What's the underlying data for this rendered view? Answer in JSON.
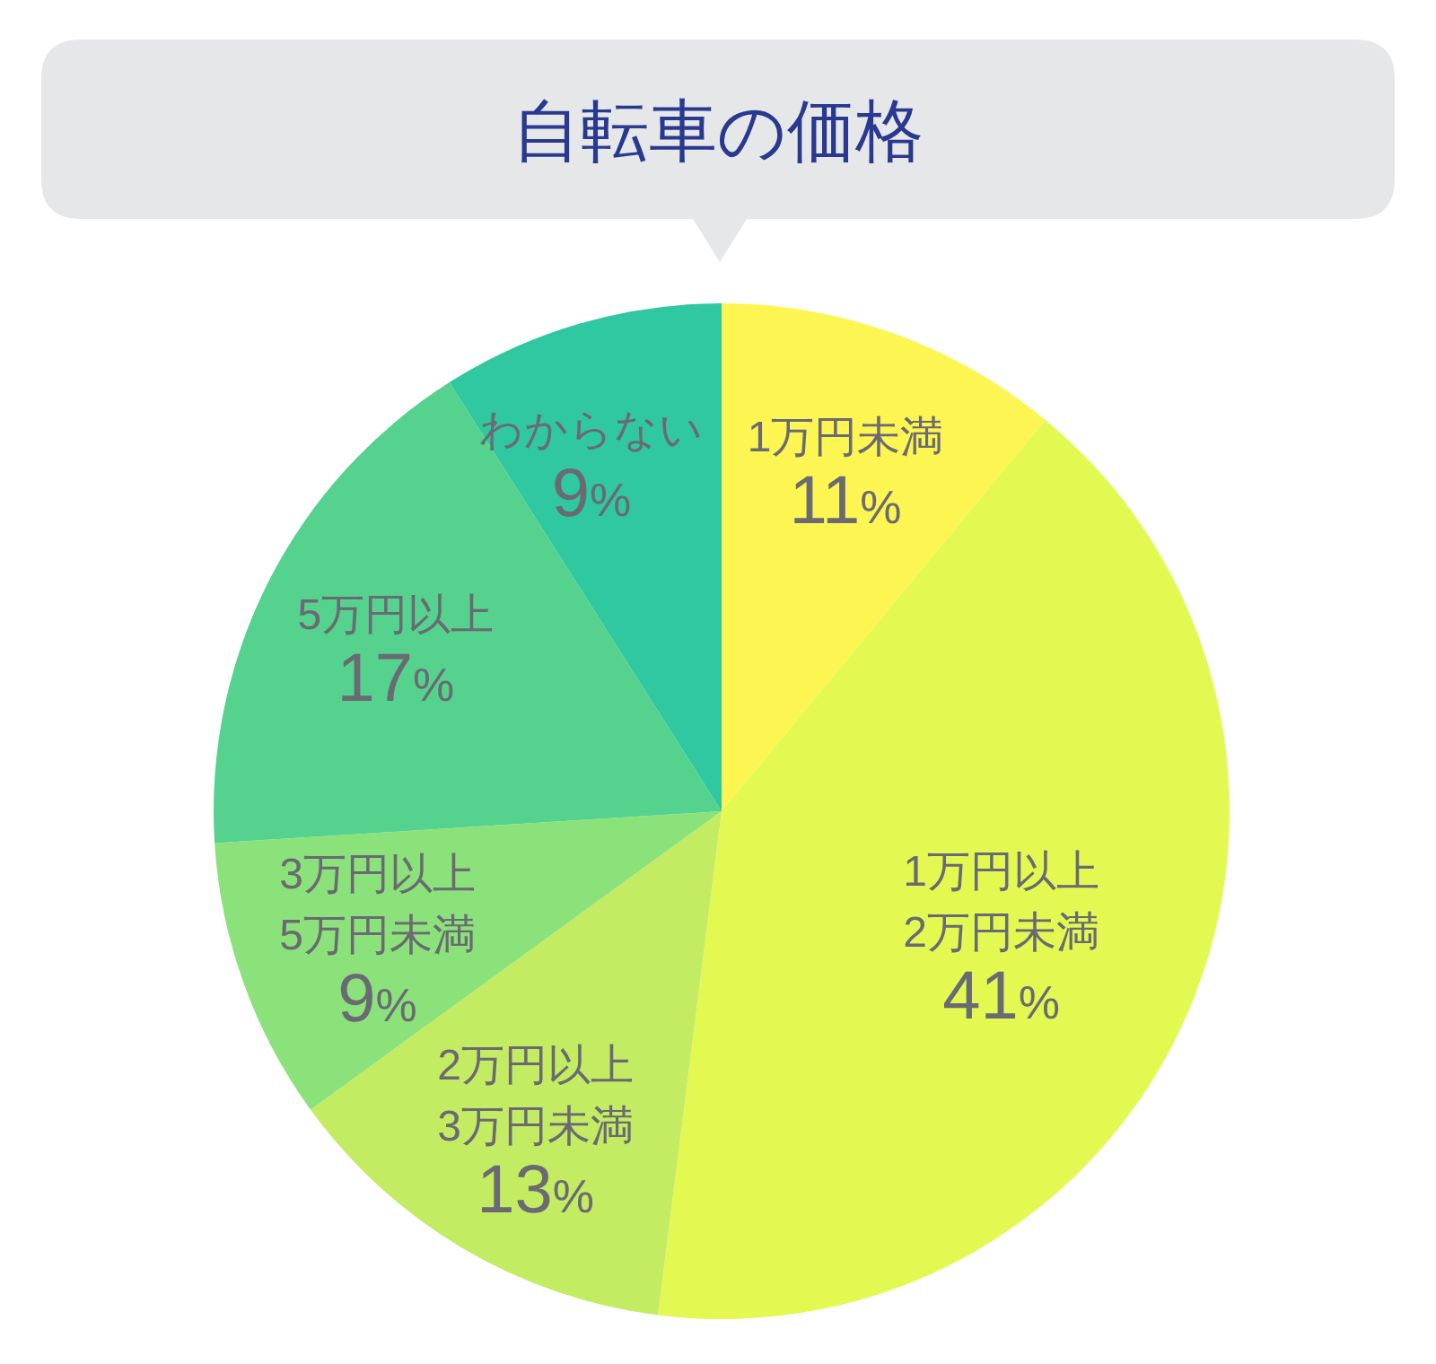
{
  "chart_data": {
    "type": "pie",
    "title": "自転車の価格",
    "categories": [
      "1万円未満",
      "1万円以上\n2万円未満",
      "2万円以上\n3万円未満",
      "3万円以上\n5万円未満",
      "5万円以上",
      "わからない"
    ],
    "values": [
      11,
      41,
      13,
      9,
      17,
      9
    ],
    "colors": [
      "#fdf552",
      "#e3f952",
      "#c3ec62",
      "#8ce27a",
      "#54d28e",
      "#30c8a0"
    ],
    "value_labels": [
      "11%",
      "41%",
      "13%",
      "9%",
      "17%",
      "9%"
    ]
  }
}
